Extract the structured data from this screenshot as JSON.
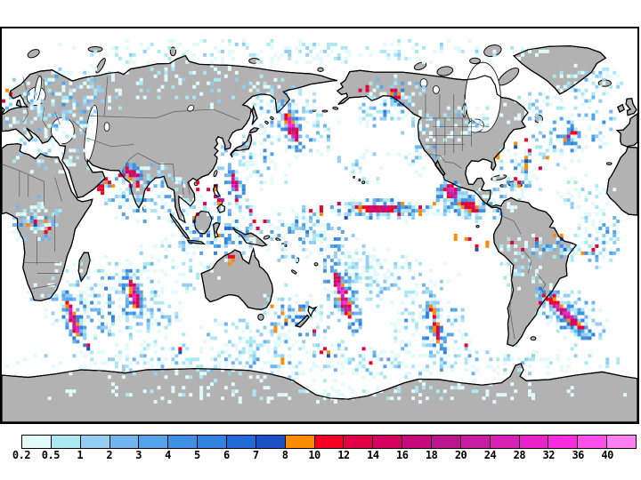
{
  "figure": {
    "kind": "global-precipitation-map",
    "projection": "cylindrical equidistant, Pacific-centered (0E-360E)",
    "title": ""
  },
  "map": {
    "ocean_color": "#ffffff",
    "land_color": "#b2b2b2",
    "coast_color": "#000000",
    "country_border_color": "#4f4f4f",
    "frame_color": "#000000"
  },
  "colorbar": {
    "tick_labels": [
      "0.2",
      "0.5",
      "1",
      "2",
      "3",
      "4",
      "5",
      "6",
      "7",
      "8",
      "10",
      "12",
      "14",
      "16",
      "18",
      "20",
      "24",
      "28",
      "32",
      "36",
      "40"
    ],
    "colors": [
      "#E2FAFA",
      "#ACE8F2",
      "#94CEF3",
      "#70B5EE",
      "#55A2E8",
      "#3E90E2",
      "#3182DE",
      "#2269D9",
      "#1A4FC6",
      "#FF8C00",
      "#F40022",
      "#E00045",
      "#D50060",
      "#C60C7C",
      "#BC148C",
      "#C81DA2",
      "#D921B6",
      "#E922C9",
      "#F72CDC",
      "#FF4FEA",
      "#FF80F0"
    ],
    "outline_color": "#000000",
    "label_color": "#000000"
  },
  "chart_data": {
    "type": "heatmap",
    "title": "",
    "legend": {
      "position": "bottom",
      "boundaries": [
        0.2,
        0.5,
        1,
        2,
        3,
        4,
        5,
        6,
        7,
        8,
        10,
        12,
        14,
        16,
        18,
        20,
        24,
        28,
        32,
        36,
        40
      ],
      "open_ended_top": true
    }
  },
  "precip_zones": {
    "fields": [
      [
        330,
        25,
        340,
        16,
        0,
        0.3,
        2
      ],
      [
        58,
        82,
        80,
        48,
        -15,
        0.4,
        5
      ],
      [
        60,
        140,
        60,
        25,
        0,
        0.25,
        3
      ],
      [
        230,
        62,
        120,
        32,
        3,
        0.2,
        2
      ],
      [
        330,
        102,
        58,
        40,
        25,
        0.5,
        6
      ],
      [
        438,
        78,
        48,
        34,
        -20,
        0.5,
        6
      ],
      [
        478,
        128,
        32,
        45,
        15,
        0.35,
        4
      ],
      [
        282,
        148,
        48,
        32,
        10,
        0.45,
        6
      ],
      [
        158,
        182,
        52,
        38,
        0,
        0.5,
        7
      ],
      [
        240,
        222,
        68,
        48,
        0,
        0.5,
        7
      ],
      [
        332,
        230,
        48,
        38,
        0,
        0.45,
        6
      ],
      [
        432,
        202,
        108,
        12,
        2,
        0.75,
        8
      ],
      [
        516,
        196,
        32,
        22,
        10,
        0.6,
        8
      ],
      [
        388,
        252,
        72,
        26,
        38,
        0.5,
        6
      ],
      [
        120,
        310,
        95,
        48,
        15,
        0.45,
        6
      ],
      [
        38,
        214,
        34,
        30,
        0,
        0.5,
        6
      ],
      [
        622,
        244,
        62,
        14,
        4,
        0.6,
        7
      ],
      [
        674,
        232,
        30,
        38,
        0,
        0.45,
        6
      ],
      [
        588,
        262,
        42,
        36,
        0,
        0.3,
        2
      ],
      [
        582,
        158,
        32,
        30,
        30,
        0.45,
        6
      ],
      [
        644,
        116,
        58,
        36,
        -22,
        0.45,
        6
      ],
      [
        552,
        196,
        36,
        24,
        0,
        0.4,
        6
      ],
      [
        642,
        322,
        58,
        32,
        38,
        0.5,
        7
      ],
      [
        332,
        322,
        48,
        38,
        20,
        0.45,
        6
      ],
      [
        478,
        332,
        52,
        42,
        0,
        0.45,
        6
      ],
      [
        360,
        372,
        370,
        26,
        0,
        0.38,
        4
      ],
      [
        360,
        408,
        370,
        14,
        0,
        0.25,
        1
      ],
      [
        506,
        182,
        20,
        18,
        0,
        0.7,
        8
      ],
      [
        130,
        188,
        28,
        20,
        0,
        0.35,
        5
      ],
      [
        268,
        348,
        60,
        26,
        5,
        0.35,
        4
      ],
      [
        398,
        152,
        48,
        26,
        5,
        0.25,
        3
      ],
      [
        432,
        282,
        85,
        36,
        0,
        0.3,
        3
      ],
      [
        660,
        60,
        45,
        28,
        -10,
        0.4,
        4
      ],
      [
        600,
        90,
        40,
        25,
        0,
        0.3,
        3
      ],
      [
        520,
        100,
        40,
        25,
        0,
        0.25,
        3
      ],
      [
        170,
        272,
        80,
        30,
        0,
        0.3,
        3
      ],
      [
        660,
        182,
        40,
        24,
        0,
        0.3,
        3
      ]
    ],
    "streaks": [
      [
        327,
        112,
        19,
        5,
        68,
        13,
        5
      ],
      [
        79,
        326,
        22,
        4,
        72,
        13,
        5
      ],
      [
        148,
        301,
        20,
        4,
        78,
        13,
        5
      ],
      [
        383,
        298,
        30,
        6,
        70,
        13,
        5
      ],
      [
        637,
        322,
        28,
        5,
        40,
        12,
        5
      ],
      [
        506,
        182,
        10,
        7,
        60,
        14,
        4
      ],
      [
        263,
        172,
        11,
        4,
        72,
        12,
        4
      ],
      [
        641,
        118,
        9,
        3,
        -35,
        10,
        3
      ],
      [
        420,
        202,
        26,
        4,
        0,
        10,
        4
      ],
      [
        527,
        199,
        12,
        5,
        15,
        10,
        3
      ],
      [
        444,
        74,
        8,
        4,
        55,
        11,
        2
      ],
      [
        145,
        162,
        8,
        4,
        25,
        12,
        3
      ],
      [
        119,
        172,
        7,
        3,
        40,
        10,
        2
      ],
      [
        488,
        334,
        26,
        3,
        78,
        9,
        3
      ]
    ],
    "dots": [
      [
        430,
        202,
        92,
        8,
        14,
        9,
        3
      ],
      [
        250,
        230,
        62,
        42,
        12,
        9,
        3
      ],
      [
        320,
        362,
        260,
        26,
        10,
        9,
        2
      ],
      [
        580,
        154,
        26,
        26,
        6,
        9,
        2
      ],
      [
        625,
        242,
        52,
        10,
        8,
        9,
        3
      ],
      [
        38,
        214,
        26,
        20,
        5,
        9,
        1
      ],
      [
        4,
        78,
        5,
        12,
        3,
        9,
        2
      ],
      [
        114,
        174,
        10,
        8,
        3,
        10,
        2
      ],
      [
        408,
        64,
        9,
        5,
        3,
        10,
        1
      ],
      [
        600,
        140,
        20,
        20,
        4,
        9,
        2
      ],
      [
        322,
        318,
        24,
        20,
        5,
        9,
        2
      ],
      [
        614,
        300,
        16,
        12,
        4,
        9,
        2
      ],
      [
        150,
        172,
        20,
        14,
        6,
        10,
        3
      ],
      [
        232,
        182,
        26,
        18,
        8,
        10,
        3
      ],
      [
        540,
        230,
        30,
        14,
        6,
        9,
        3
      ]
    ]
  }
}
